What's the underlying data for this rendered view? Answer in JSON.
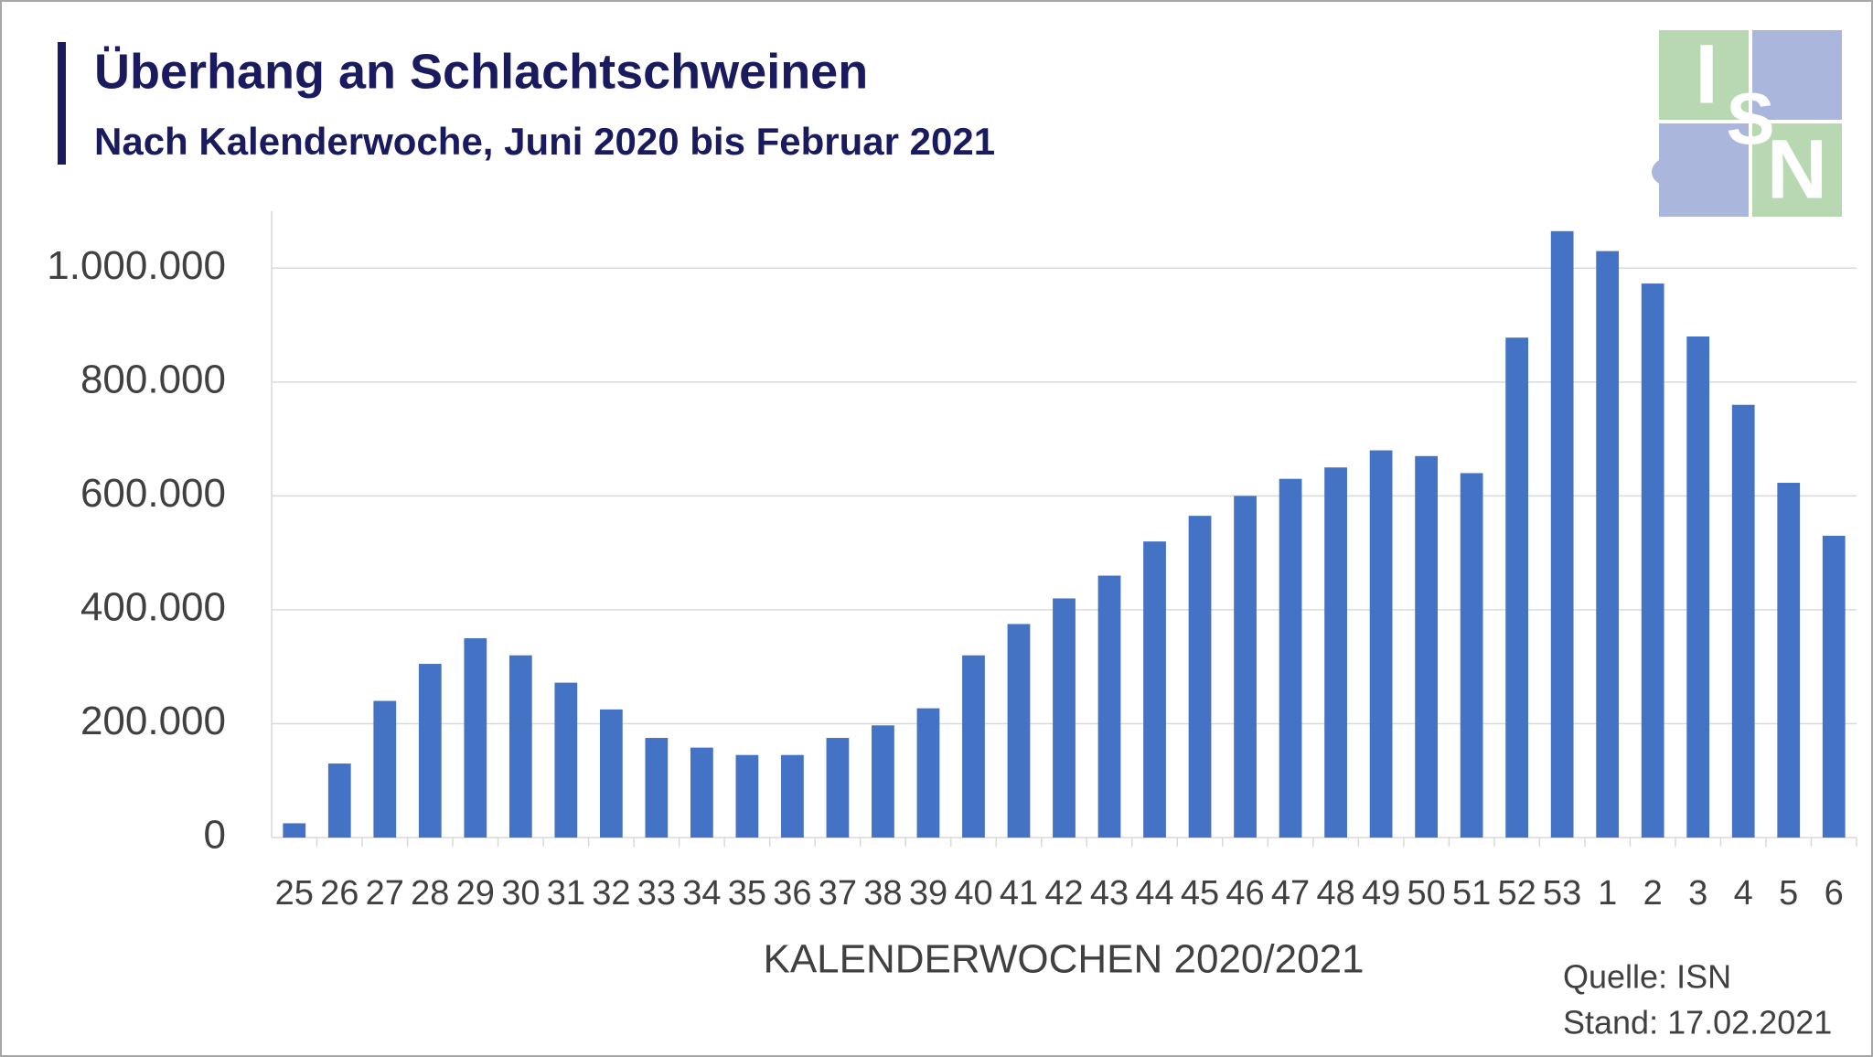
{
  "chart_data": {
    "type": "bar",
    "title": "Überhang an Schlachtschweinen",
    "subtitle": "Nach Kalenderwoche, Juni 2020 bis Februar 2021",
    "x_label": "KALENDERWOCHEN 2020/2021",
    "source": "Quelle: ISN",
    "date": "Stand: 17.02.2021",
    "logo": [
      "I",
      "S",
      "N"
    ],
    "categories": [
      "25",
      "26",
      "27",
      "28",
      "29",
      "30",
      "31",
      "32",
      "33",
      "34",
      "35",
      "36",
      "37",
      "38",
      "39",
      "40",
      "41",
      "42",
      "43",
      "44",
      "45",
      "46",
      "47",
      "48",
      "49",
      "50",
      "51",
      "52",
      "53",
      "1",
      "2",
      "3",
      "4",
      "5",
      "6"
    ],
    "values": [
      25000,
      130000,
      240000,
      305000,
      350000,
      320000,
      272000,
      225000,
      175000,
      158000,
      145000,
      145000,
      175000,
      197000,
      227000,
      320000,
      375000,
      420000,
      460000,
      520000,
      565000,
      600000,
      630000,
      650000,
      680000,
      670000,
      640000,
      878000,
      1065000,
      1030000,
      973000,
      880000,
      760000,
      623000,
      530000
    ],
    "color": "#4472c4",
    "ylim": [
      0,
      1100000
    ],
    "yticks": [
      0,
      {
        "value": 200000,
        "label": "200.000"
      },
      {
        "value": 400000,
        "label": "400.000"
      },
      {
        "value": 600000,
        "label": "600.000"
      },
      {
        "value": 800000,
        "label": "800.000"
      },
      {
        "value": 1000000,
        "label": "1.000.000"
      }
    ],
    "grid": true
  }
}
